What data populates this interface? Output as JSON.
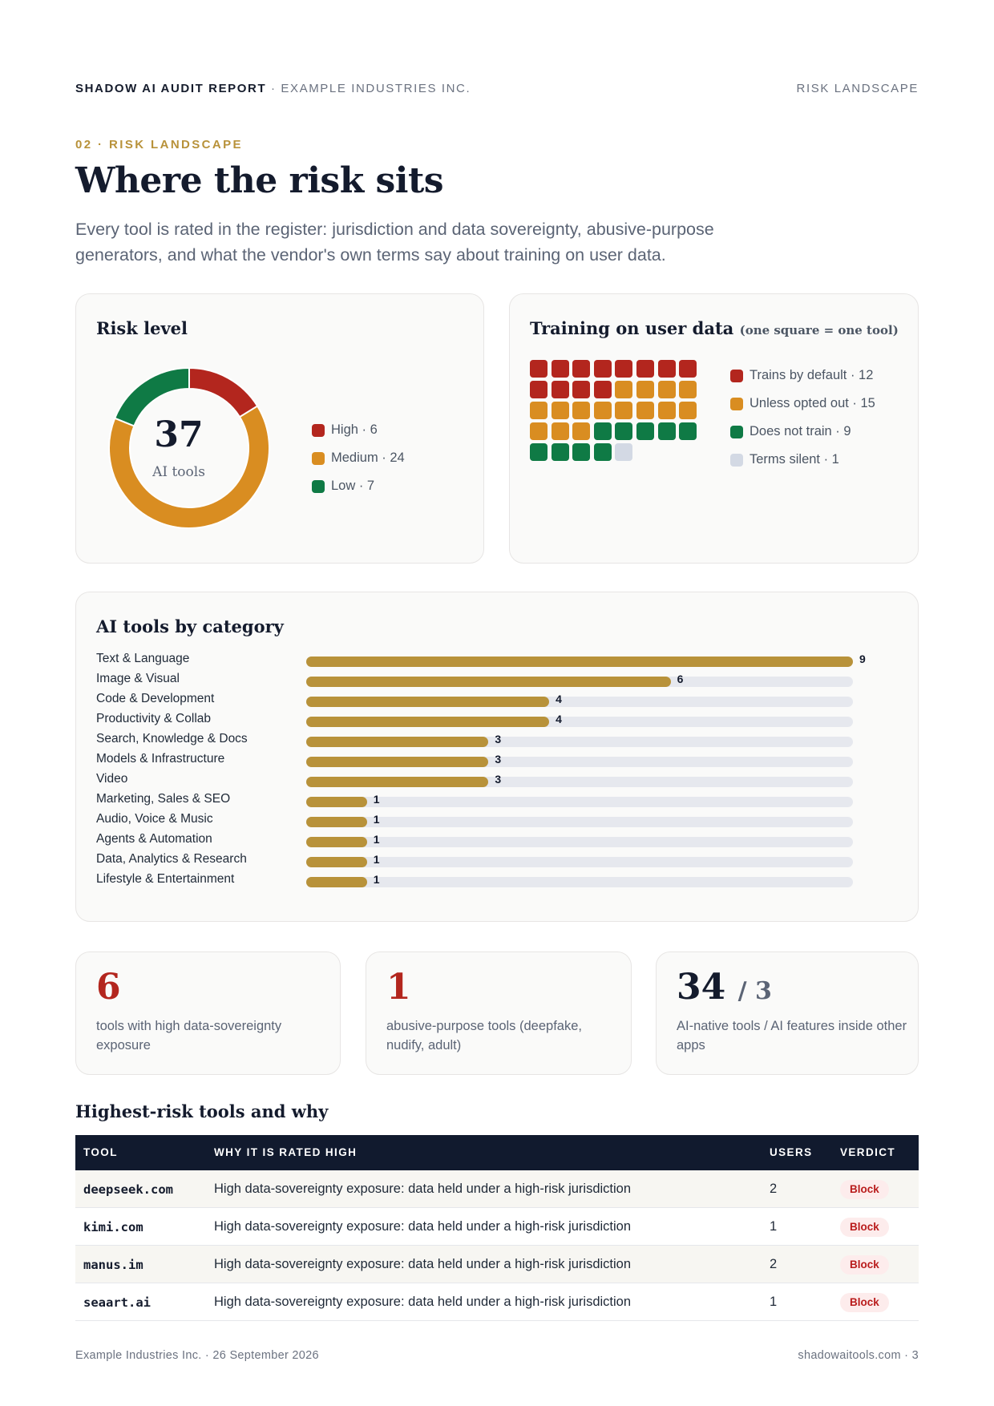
{
  "header": {
    "brand": "SHADOW AI AUDIT REPORT",
    "separator": " · ",
    "company": "EXAMPLE INDUSTRIES INC.",
    "section": "RISK LANDSCAPE"
  },
  "eyebrow": "02 · RISK LANDSCAPE",
  "title": "Where the risk sits",
  "lede": "Every tool is rated in the register: jurisdiction and data sovereignty, abusive-purpose generators, and what the vendor's own terms say about training on user data.",
  "risk_level": {
    "title": "Risk level",
    "total": "37",
    "total_label": "AI tools",
    "segments": [
      {
        "label": "High · 6",
        "value": 6,
        "color": "#b3261e"
      },
      {
        "label": "Medium · 24",
        "value": 24,
        "color": "#d98d21"
      },
      {
        "label": "Low · 7",
        "value": 7,
        "color": "#0f7a45"
      }
    ]
  },
  "training": {
    "title": "Training on user data",
    "subtitle": "(one square = one tool)",
    "groups": [
      {
        "label": "Trains by default · 12",
        "count": 12,
        "color": "#b3261e"
      },
      {
        "label": "Unless opted out · 15",
        "count": 15,
        "color": "#d98d21"
      },
      {
        "label": "Does not train · 9",
        "count": 9,
        "color": "#0f7a45"
      },
      {
        "label": "Terms silent · 1",
        "count": 1,
        "color": "#d3d9e4"
      }
    ]
  },
  "chart_data": {
    "type": "bar",
    "title": "AI tools by category",
    "categories": [
      "Text & Language",
      "Image & Visual",
      "Code & Development",
      "Productivity & Collab",
      "Search, Knowledge & Docs",
      "Models & Infrastructure",
      "Video",
      "Marketing, Sales & SEO",
      "Audio, Voice & Music",
      "Agents & Automation",
      "Data, Analytics & Research",
      "Lifestyle & Entertainment"
    ],
    "values": [
      9,
      6,
      4,
      4,
      3,
      3,
      3,
      1,
      1,
      1,
      1,
      1
    ],
    "xlim": [
      0,
      9
    ],
    "orientation": "horizontal"
  },
  "stats": [
    {
      "value": "6",
      "desc": "tools with high data-sovereignty exposure",
      "color": "#b3261e"
    },
    {
      "value": "1",
      "desc": "abusive-purpose tools (deepfake, nudify, adult)",
      "color": "#b3261e"
    },
    {
      "value": "34",
      "suffix": "/ 3",
      "desc": "AI-native tools / AI features inside other apps",
      "color": "#141b2d"
    }
  ],
  "table": {
    "title": "Highest-risk tools and why",
    "headers": {
      "tool": "TOOL",
      "why": "WHY IT IS RATED HIGH",
      "users": "USERS",
      "verdict": "VERDICT"
    },
    "rows": [
      {
        "tool": "deepseek.com",
        "why": "High data-sovereignty exposure: data held under a high-risk jurisdiction",
        "users": "2",
        "verdict": "Block"
      },
      {
        "tool": "kimi.com",
        "why": "High data-sovereignty exposure: data held under a high-risk jurisdiction",
        "users": "1",
        "verdict": "Block"
      },
      {
        "tool": "manus.im",
        "why": "High data-sovereignty exposure: data held under a high-risk jurisdiction",
        "users": "2",
        "verdict": "Block"
      },
      {
        "tool": "seaart.ai",
        "why": "High data-sovereignty exposure: data held under a high-risk jurisdiction",
        "users": "1",
        "verdict": "Block"
      }
    ]
  },
  "footer": {
    "left": "Example Industries Inc. · 26 September 2026",
    "right": "shadowaitools.com · 3"
  }
}
